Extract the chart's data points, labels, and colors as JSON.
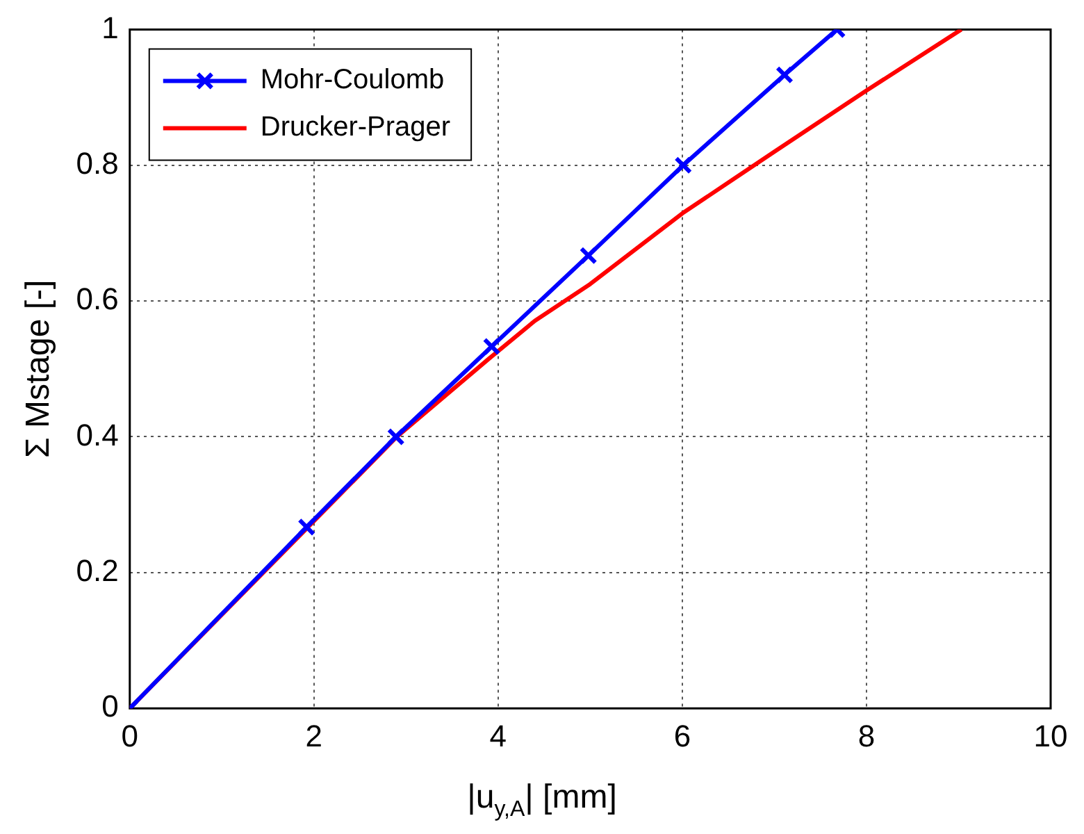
{
  "chart_data": {
    "type": "line",
    "xlabel": "|u$_{y,A}$| [mm]",
    "ylabel": "Σ Mstage [-]",
    "xlim": [
      0,
      10
    ],
    "xticks": [
      0,
      2,
      4,
      6,
      8,
      10
    ],
    "ylim": [
      0,
      1
    ],
    "yticks": [
      0,
      0.2,
      0.4,
      0.6,
      0.8,
      1
    ],
    "grid": true,
    "legend": "top left",
    "line_style": "solid",
    "series": [
      {
        "name": "Mohr-Coulomb",
        "color": "#0000ff",
        "marker": "cross",
        "x": [
          0,
          1.92,
          2.89,
          3.93,
          4.98,
          6.01,
          7.11,
          7.68
        ],
        "values": [
          0,
          0.267,
          0.4,
          0.533,
          0.667,
          0.8,
          0.933,
          1
        ]
      },
      {
        "name": "Drucker-Prager",
        "color": "#ff0000",
        "marker": "none",
        "x": [
          0,
          2.9,
          3.9,
          4.4,
          5,
          6,
          7,
          8,
          9.03
        ],
        "values": [
          0,
          0.4,
          0.515,
          0.571,
          0.625,
          0.729,
          0.82,
          0.91,
          1
        ]
      }
    ]
  }
}
